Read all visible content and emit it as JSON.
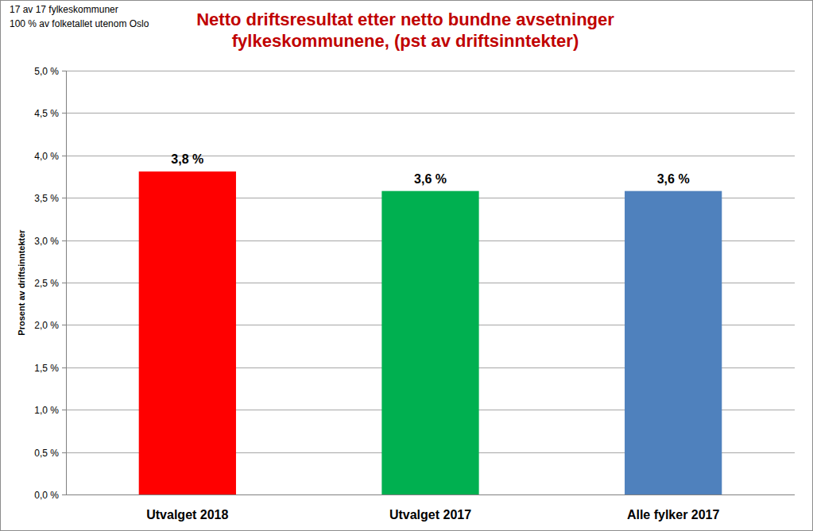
{
  "chart_data": {
    "type": "bar",
    "title": "Netto driftsresultat etter netto bundne avsetninger fylkeskommunene, (pst av driftsinntekter)",
    "annotations": [
      "17 av 17 fylkeskommuner",
      "100 % av folketallet utenom Oslo"
    ],
    "y_label": "Prosent av driftsinntekter",
    "categories": [
      "Utvalget 2018",
      "Utvalget 2017",
      "Alle fylker 2017"
    ],
    "values": [
      3.81,
      3.58,
      3.58
    ],
    "value_labels": [
      "3,8 %",
      "3,6 %",
      "3,6 %"
    ],
    "colors": [
      "#ff0000",
      "#00b050",
      "#4f81bd"
    ],
    "ylim": [
      0,
      5
    ],
    "yticks": [
      {
        "value": 0,
        "label": "0,0 %"
      },
      {
        "value": 0.5,
        "label": "0,5 %"
      },
      {
        "value": 1,
        "label": "1,0 %"
      },
      {
        "value": 1.5,
        "label": "1,5 %"
      },
      {
        "value": 2,
        "label": "2,0 %"
      },
      {
        "value": 2.5,
        "label": "2,5 %"
      },
      {
        "value": 3,
        "label": "3,0 %"
      },
      {
        "value": 3.5,
        "label": "3,5 %"
      },
      {
        "value": 4,
        "label": "4,0 %"
      },
      {
        "value": 4.5,
        "label": "4,5 %"
      },
      {
        "value": 5,
        "label": "5,0 %"
      }
    ],
    "grid": true,
    "data_labels": true
  }
}
